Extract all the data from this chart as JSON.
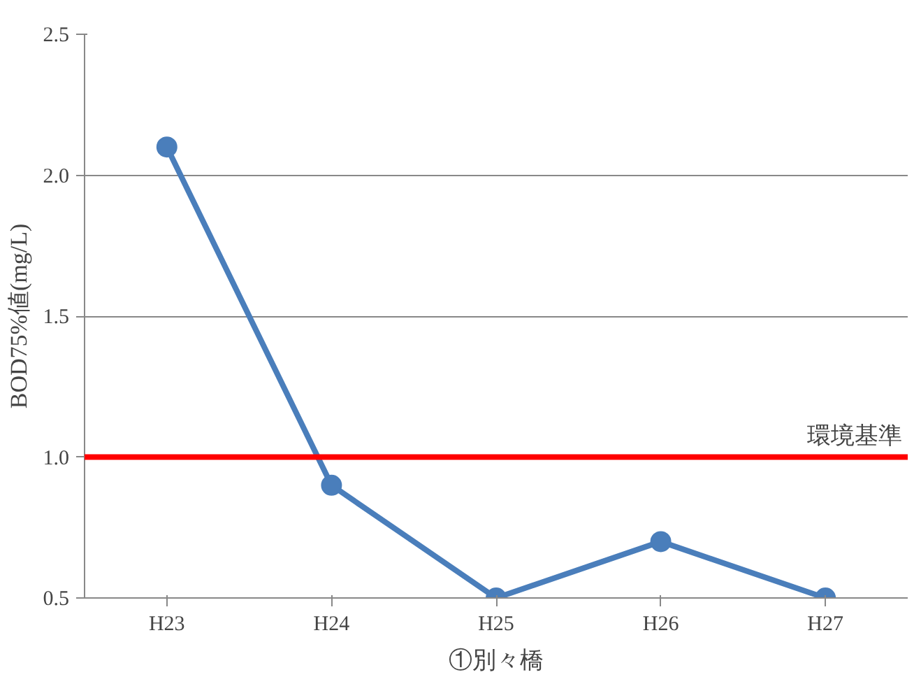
{
  "chart_data": {
    "type": "line",
    "xlabel": "①別々橋",
    "ylabel": "BOD75%値(mg/L)",
    "categories": [
      "H23",
      "H24",
      "H25",
      "H26",
      "H27"
    ],
    "series": [
      {
        "color": "#4a7ebb",
        "values": [
          2.1,
          0.9,
          0.5,
          0.7,
          0.5
        ]
      }
    ],
    "ylim": [
      0.5,
      2.5
    ],
    "yticks": [
      {
        "value": 0.5,
        "label": "0.5"
      },
      {
        "value": 1.0,
        "label": "1.0"
      },
      {
        "value": 1.5,
        "label": "1.5"
      },
      {
        "value": 2.0,
        "label": "2.0"
      },
      {
        "value": 2.5,
        "label": "2.5"
      }
    ],
    "ref_lines": [
      {
        "axis": "y",
        "value": 1.0,
        "label": "環境基準",
        "color": "#ff0000"
      }
    ],
    "grid": "y",
    "marker": "circle",
    "line_style": "solid"
  }
}
